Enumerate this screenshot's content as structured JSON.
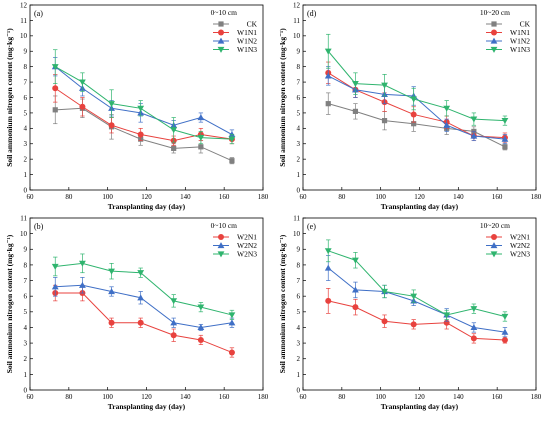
{
  "chart_data": [
    {
      "type": "line",
      "panel_label": "(a)",
      "depth_label": "0~10 cm",
      "xlabel": "Transplanting day (day)",
      "ylabel": "Soil ammonium nitrogen content (mg·kg⁻¹)",
      "xlim": [
        60,
        180
      ],
      "ylim": [
        0,
        12
      ],
      "xticks": [
        60,
        80,
        100,
        120,
        140,
        160,
        180
      ],
      "yticks": [
        0,
        1,
        2,
        3,
        4,
        5,
        6,
        7,
        8,
        9,
        10,
        11,
        12
      ],
      "legend_position": "top-right",
      "x": [
        73,
        87,
        102,
        117,
        134,
        148,
        164
      ],
      "series": [
        {
          "name": "CK",
          "color": "#808080",
          "marker": "square",
          "values": [
            5.2,
            5.3,
            4.1,
            3.3,
            2.7,
            2.8,
            1.9
          ],
          "errors": [
            0.9,
            0.6,
            0.8,
            0.4,
            0.3,
            0.4,
            0.2
          ]
        },
        {
          "name": "W1N1",
          "color": "#e8423e",
          "marker": "circle",
          "values": [
            6.6,
            5.4,
            4.2,
            3.6,
            3.2,
            3.6,
            3.3
          ],
          "errors": [
            0.9,
            0.6,
            0.5,
            0.4,
            0.3,
            0.4,
            0.3
          ]
        },
        {
          "name": "W1N2",
          "color": "#3f6fc6",
          "marker": "triangle-up",
          "values": [
            8.0,
            6.6,
            5.3,
            5.0,
            4.2,
            4.7,
            3.6
          ],
          "errors": [
            0.6,
            0.5,
            0.5,
            0.6,
            0.3,
            0.3,
            0.3
          ]
        },
        {
          "name": "W1N3",
          "color": "#2fb46e",
          "marker": "triangle-down",
          "values": [
            8.0,
            7.0,
            5.6,
            5.3,
            3.9,
            3.4,
            3.3
          ],
          "errors": [
            1.1,
            0.6,
            0.9,
            0.5,
            0.8,
            0.4,
            0.3
          ]
        }
      ]
    },
    {
      "type": "line",
      "panel_label": "(d)",
      "depth_label": "10~20 cm",
      "xlabel": "Transplanting day (day)",
      "ylabel": "Soil ammonium nitrogen content (mg·kg⁻¹)",
      "xlim": [
        60,
        180
      ],
      "ylim": [
        0,
        12
      ],
      "xticks": [
        60,
        80,
        100,
        120,
        140,
        160,
        180
      ],
      "yticks": [
        0,
        1,
        2,
        3,
        4,
        5,
        6,
        7,
        8,
        9,
        10,
        11,
        12
      ],
      "legend_position": "top-right",
      "x": [
        73,
        87,
        102,
        117,
        134,
        148,
        164
      ],
      "series": [
        {
          "name": "CK",
          "color": "#808080",
          "marker": "square",
          "values": [
            5.6,
            5.1,
            4.5,
            4.3,
            4.0,
            3.8,
            2.8
          ],
          "errors": [
            0.7,
            0.5,
            0.6,
            0.5,
            0.4,
            0.3,
            0.2
          ]
        },
        {
          "name": "W1N1",
          "color": "#e8423e",
          "marker": "circle",
          "values": [
            7.6,
            6.5,
            5.7,
            4.9,
            4.4,
            3.5,
            3.4
          ],
          "errors": [
            0.7,
            0.5,
            0.6,
            0.5,
            0.4,
            0.3,
            0.3
          ]
        },
        {
          "name": "W1N2",
          "color": "#3f6fc6",
          "marker": "triangle-up",
          "values": [
            7.4,
            6.5,
            6.2,
            6.1,
            4.2,
            3.5,
            3.3
          ],
          "errors": [
            0.6,
            0.5,
            0.6,
            0.6,
            0.4,
            0.3,
            0.3
          ]
        },
        {
          "name": "W1N3",
          "color": "#2fb46e",
          "marker": "triangle-down",
          "values": [
            9.0,
            6.9,
            6.8,
            5.9,
            5.3,
            4.6,
            4.5
          ],
          "errors": [
            1.1,
            0.7,
            0.7,
            0.7,
            0.5,
            0.4,
            0.3
          ]
        }
      ]
    },
    {
      "type": "line",
      "panel_label": "(b)",
      "depth_label": "0~10 cm",
      "xlabel": "Transplanting day (day)",
      "ylabel": "Soil ammonium nitrogen content (mg·kg⁻¹)",
      "xlim": [
        60,
        180
      ],
      "ylim": [
        0,
        11
      ],
      "xticks": [
        60,
        80,
        100,
        120,
        140,
        160,
        180
      ],
      "yticks": [
        0,
        1,
        2,
        3,
        4,
        5,
        6,
        7,
        8,
        9,
        10,
        11
      ],
      "legend_position": "top-right",
      "x": [
        73,
        87,
        102,
        117,
        134,
        148,
        164
      ],
      "series": [
        {
          "name": "W2N1",
          "color": "#e8423e",
          "marker": "circle",
          "values": [
            6.2,
            6.2,
            4.3,
            4.3,
            3.5,
            3.2,
            2.4
          ],
          "errors": [
            0.5,
            0.5,
            0.3,
            0.3,
            0.4,
            0.3,
            0.3
          ]
        },
        {
          "name": "W2N2",
          "color": "#3f6fc6",
          "marker": "triangle-up",
          "values": [
            6.6,
            6.7,
            6.3,
            5.9,
            4.3,
            4.0,
            4.3
          ],
          "errors": [
            0.6,
            0.5,
            0.3,
            0.4,
            0.3,
            0.2,
            0.3
          ]
        },
        {
          "name": "W2N3",
          "color": "#2fb46e",
          "marker": "triangle-down",
          "values": [
            7.9,
            8.1,
            7.6,
            7.5,
            5.7,
            5.3,
            4.8
          ],
          "errors": [
            0.6,
            0.6,
            0.5,
            0.3,
            0.4,
            0.3,
            0.3
          ]
        }
      ]
    },
    {
      "type": "line",
      "panel_label": "(e)",
      "depth_label": "10~20 cm",
      "xlabel": "Transplanting day (day)",
      "ylabel": "Soil ammonium nitrogen content (mg·kg⁻¹)",
      "xlim": [
        60,
        180
      ],
      "ylim": [
        0,
        11
      ],
      "xticks": [
        60,
        80,
        100,
        120,
        140,
        160,
        180
      ],
      "yticks": [
        0,
        1,
        2,
        3,
        4,
        5,
        6,
        7,
        8,
        9,
        10,
        11
      ],
      "legend_position": "top-right",
      "x": [
        73,
        87,
        102,
        117,
        134,
        148,
        164
      ],
      "series": [
        {
          "name": "W2N1",
          "color": "#e8423e",
          "marker": "circle",
          "values": [
            5.7,
            5.3,
            4.4,
            4.2,
            4.3,
            3.3,
            3.2
          ],
          "errors": [
            0.8,
            0.5,
            0.4,
            0.3,
            0.4,
            0.3,
            0.2
          ]
        },
        {
          "name": "W2N2",
          "color": "#3f6fc6",
          "marker": "triangle-up",
          "values": [
            7.8,
            6.4,
            6.3,
            5.7,
            4.8,
            4.0,
            3.7
          ],
          "errors": [
            0.8,
            0.5,
            0.4,
            0.3,
            0.4,
            0.3,
            0.3
          ]
        },
        {
          "name": "W2N3",
          "color": "#2fb46e",
          "marker": "triangle-down",
          "values": [
            8.9,
            8.3,
            6.3,
            6.0,
            4.8,
            5.2,
            4.7
          ],
          "errors": [
            0.7,
            0.5,
            0.4,
            0.4,
            0.3,
            0.3,
            0.3
          ]
        }
      ]
    }
  ]
}
